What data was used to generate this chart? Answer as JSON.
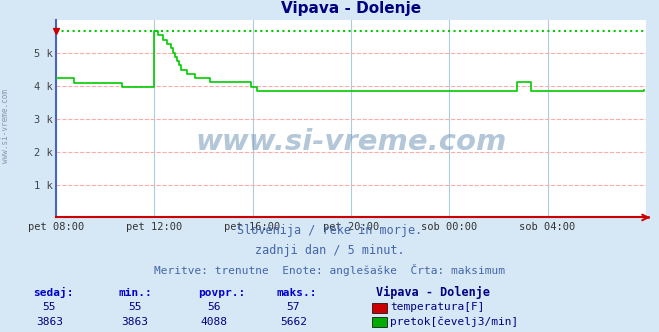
{
  "title": "Vipava - Dolenje",
  "title_color": "#000080",
  "bg_color": "#d6e8f5",
  "plot_bg_color": "#ffffff",
  "grid_color_h": "#ffaaaa",
  "grid_color_v": "#aaccdd",
  "xticklabels": [
    "pet 08:00",
    "pet 12:00",
    "pet 16:00",
    "pet 20:00",
    "sob 00:00",
    "sob 04:00"
  ],
  "xtick_positions": [
    0,
    48,
    96,
    144,
    192,
    240
  ],
  "total_points": 288,
  "ylim": [
    0,
    6000
  ],
  "yticks": [
    0,
    1000,
    2000,
    3000,
    4000,
    5000
  ],
  "yticklabels": [
    "",
    "1 k",
    "2 k",
    "3 k",
    "4 k",
    "5 k"
  ],
  "left_spine_color": "#4466bb",
  "bottom_spine_color": "#cc0000",
  "watermark": "www.si-vreme.com",
  "subtitle1": "Slovenija / reke in morje.",
  "subtitle2": "zadnji dan / 5 minut.",
  "subtitle3": "Meritve: trenutne  Enote: anglešaške  Črta: maksimum",
  "subtitle_color": "#4466aa",
  "table_headers": [
    "sedaj:",
    "min.:",
    "povpr.:",
    "maks.:"
  ],
  "table_header_color": "#0000cc",
  "table_row1": [
    "55",
    "55",
    "56",
    "57"
  ],
  "table_row2": [
    "3863",
    "3863",
    "4088",
    "5662"
  ],
  "table_color": "#000080",
  "legend_label1": "temperatura[F]",
  "legend_label2": "pretok[čevelj3/min]",
  "legend_color1": "#cc0000",
  "legend_color2": "#00aa00",
  "station_label": "Vipava - Dolenje",
  "station_color": "#000080",
  "flow_line_color": "#00cc00",
  "flow_max_line_color": "#00cc00",
  "flow_data": [
    4224,
    4224,
    4224,
    4224,
    4224,
    4224,
    4224,
    4224,
    4224,
    4096,
    4096,
    4096,
    4096,
    4096,
    4096,
    4096,
    4096,
    4096,
    4096,
    4096,
    4096,
    4096,
    4096,
    4096,
    4096,
    4096,
    4096,
    4096,
    4096,
    4096,
    4096,
    4096,
    3968,
    3968,
    3968,
    3968,
    3968,
    3968,
    3968,
    3968,
    3968,
    3968,
    3968,
    3968,
    3968,
    3968,
    3968,
    3968,
    5662,
    5662,
    5530,
    5530,
    5400,
    5400,
    5270,
    5270,
    5140,
    5010,
    4880,
    4750,
    4620,
    4490,
    4490,
    4490,
    4360,
    4360,
    4360,
    4360,
    4230,
    4230,
    4230,
    4230,
    4230,
    4230,
    4230,
    4100,
    4100,
    4100,
    4100,
    4100,
    4100,
    4100,
    4100,
    4100,
    4100,
    4100,
    4100,
    4100,
    4100,
    4100,
    4100,
    4100,
    4100,
    4100,
    4100,
    3970,
    3970,
    3970,
    3840,
    3840,
    3840,
    3840,
    3840,
    3840,
    3840,
    3840,
    3840,
    3840,
    3840,
    3840,
    3840,
    3840,
    3840,
    3840,
    3840,
    3840,
    3840,
    3840,
    3840,
    3840,
    3840,
    3840,
    3840,
    3840,
    3840,
    3840,
    3840,
    3840,
    3840,
    3840,
    3840,
    3840,
    3840,
    3840,
    3840,
    3840,
    3840,
    3840,
    3840,
    3840,
    3840,
    3840,
    3840,
    3840,
    3840,
    3840,
    3840,
    3840,
    3840,
    3840,
    3840,
    3840,
    3840,
    3840,
    3840,
    3840,
    3840,
    3840,
    3840,
    3840,
    3840,
    3840,
    3840,
    3840,
    3840,
    3840,
    3840,
    3840,
    3840,
    3840,
    3840,
    3840,
    3840,
    3840,
    3840,
    3840,
    3840,
    3840,
    3840,
    3840,
    3840,
    3840,
    3840,
    3840,
    3840,
    3840,
    3840,
    3840,
    3840,
    3840,
    3840,
    3840,
    3840,
    3840,
    3840,
    3840,
    3840,
    3840,
    3840,
    3840,
    3840,
    3840,
    3840,
    3840,
    3840,
    3840,
    3840,
    3840,
    3840,
    3840,
    3840,
    3840,
    3840,
    3840,
    3840,
    3840,
    3840,
    3840,
    3840,
    3840,
    3840,
    3840,
    3840,
    3840,
    3840,
    4100,
    4100,
    4100,
    4100,
    4100,
    4100,
    4100,
    3840,
    3840,
    3840,
    3840,
    3840,
    3840,
    3840,
    3840,
    3840,
    3840,
    3840,
    3840,
    3840,
    3840,
    3840,
    3840,
    3840,
    3840,
    3840,
    3840,
    3840,
    3840,
    3840,
    3840,
    3840,
    3840,
    3840,
    3840,
    3840,
    3840,
    3840,
    3840,
    3840,
    3840,
    3840,
    3840,
    3840,
    3840,
    3840,
    3840,
    3840,
    3840,
    3840,
    3840,
    3840,
    3840,
    3840,
    3840,
    3840,
    3840,
    3840,
    3840,
    3840,
    3840,
    3840,
    3863
  ],
  "max_flow_value": 5662,
  "side_label": "www.si-vreme.com"
}
